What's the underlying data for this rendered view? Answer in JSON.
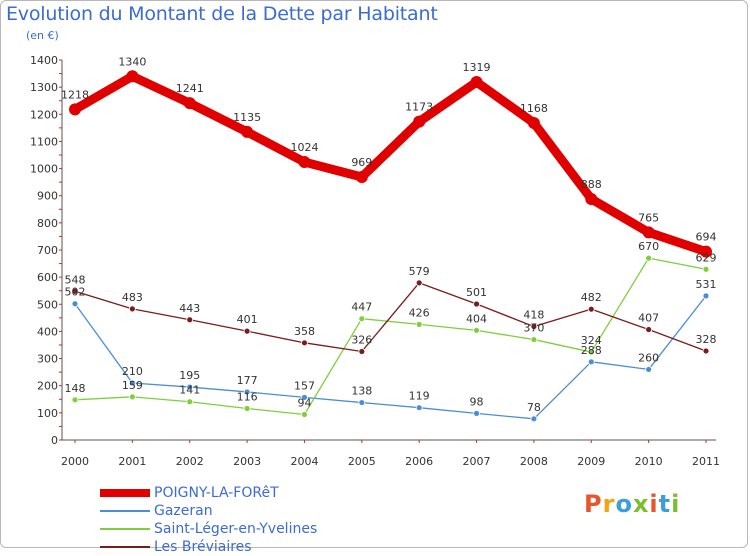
{
  "chart_data": {
    "type": "line",
    "title": "Evolution du Montant de la Dette par Habitant",
    "subtitle": "(en €)",
    "categories": [
      "2000",
      "2001",
      "2002",
      "2003",
      "2004",
      "2005",
      "2006",
      "2007",
      "2008",
      "2009",
      "2010",
      "2011"
    ],
    "ylim": [
      0,
      1400
    ],
    "yticks": [
      0,
      100,
      200,
      300,
      400,
      500,
      600,
      700,
      800,
      900,
      1000,
      1100,
      1200,
      1300,
      1400
    ],
    "grid": false,
    "legend_position": "bottom-left",
    "series": [
      {
        "name": "POIGNY-LA-FORêT",
        "color": "#e00000",
        "values": [
          1218,
          1340,
          1241,
          1135,
          1024,
          969,
          1173,
          1319,
          1168,
          888,
          765,
          694
        ],
        "labels": [
          "1218",
          "1340",
          "1241",
          "1135",
          "1024",
          "969",
          "1173",
          "1319",
          "1168",
          "888",
          "765",
          "694"
        ],
        "thick": true
      },
      {
        "name": "Gazeran",
        "color": "#4a8ed6",
        "values": [
          502,
          210,
          195,
          177,
          157,
          138,
          119,
          98,
          78,
          288,
          260,
          531
        ],
        "labels": [
          "502",
          "210",
          "195",
          "177",
          "157",
          "138",
          "119",
          "98",
          "78",
          "288",
          "260",
          "531"
        ],
        "thick": false
      },
      {
        "name": "Saint-Léger-en-Yvelines",
        "color": "#7fcf3c",
        "values": [
          148,
          159,
          141,
          116,
          94,
          447,
          426,
          404,
          370,
          324,
          670,
          629
        ],
        "labels": [
          "148",
          "159",
          "141",
          "116",
          "94",
          "447",
          "426",
          "404",
          "370",
          "324",
          "670",
          "629"
        ],
        "thick": false
      },
      {
        "name": "Les Bréviaires",
        "color": "#7b1c1c",
        "values": [
          548,
          483,
          443,
          401,
          358,
          326,
          579,
          501,
          418,
          482,
          407,
          328
        ],
        "labels": [
          "548",
          "483",
          "443",
          "401",
          "358",
          "326",
          "579",
          "501",
          "418",
          "482",
          "407",
          "328"
        ],
        "thick": false
      }
    ]
  },
  "logo": {
    "text": "Proxiti",
    "colors": [
      "#e8552b",
      "#f2a413",
      "#3c9fd9",
      "#7bbf2f",
      "#e8552b",
      "#3c9fd9",
      "#7bbf2f"
    ]
  }
}
